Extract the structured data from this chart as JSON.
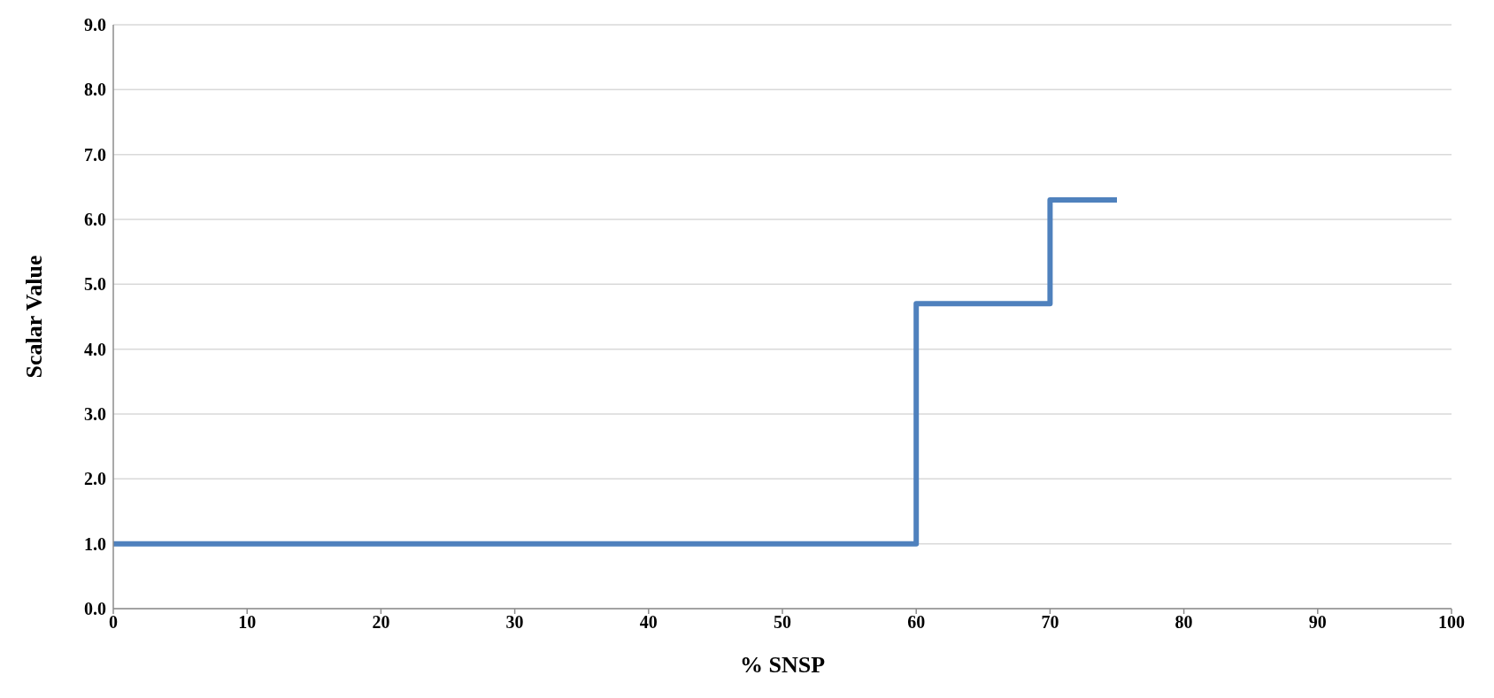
{
  "chart_data": {
    "type": "step",
    "xlabel": "% SNSP",
    "ylabel": "Scalar Value",
    "x": [
      0,
      60,
      70,
      75
    ],
    "series": [
      {
        "color": "#4f81bd",
        "values": [
          1.0,
          4.7,
          6.3,
          6.3
        ]
      }
    ],
    "xlim": [
      0,
      100
    ],
    "xticks": [
      0,
      10,
      20,
      30,
      40,
      50,
      60,
      70,
      80,
      90,
      100
    ],
    "ylim": [
      0,
      9
    ],
    "yticks": [
      {
        "value": 0,
        "label": "0.0"
      },
      {
        "value": 1,
        "label": "1.0"
      },
      {
        "value": 2,
        "label": "2.0"
      },
      {
        "value": 3,
        "label": "3.0"
      },
      {
        "value": 4,
        "label": "4.0"
      },
      {
        "value": 5,
        "label": "5.0"
      },
      {
        "value": 6,
        "label": "6.0"
      },
      {
        "value": 7,
        "label": "7.0"
      },
      {
        "value": 8,
        "label": "8.0"
      },
      {
        "value": 9,
        "label": "9.0"
      }
    ],
    "grid": "y",
    "legend": false,
    "marker": "none",
    "line_style": "solid"
  }
}
